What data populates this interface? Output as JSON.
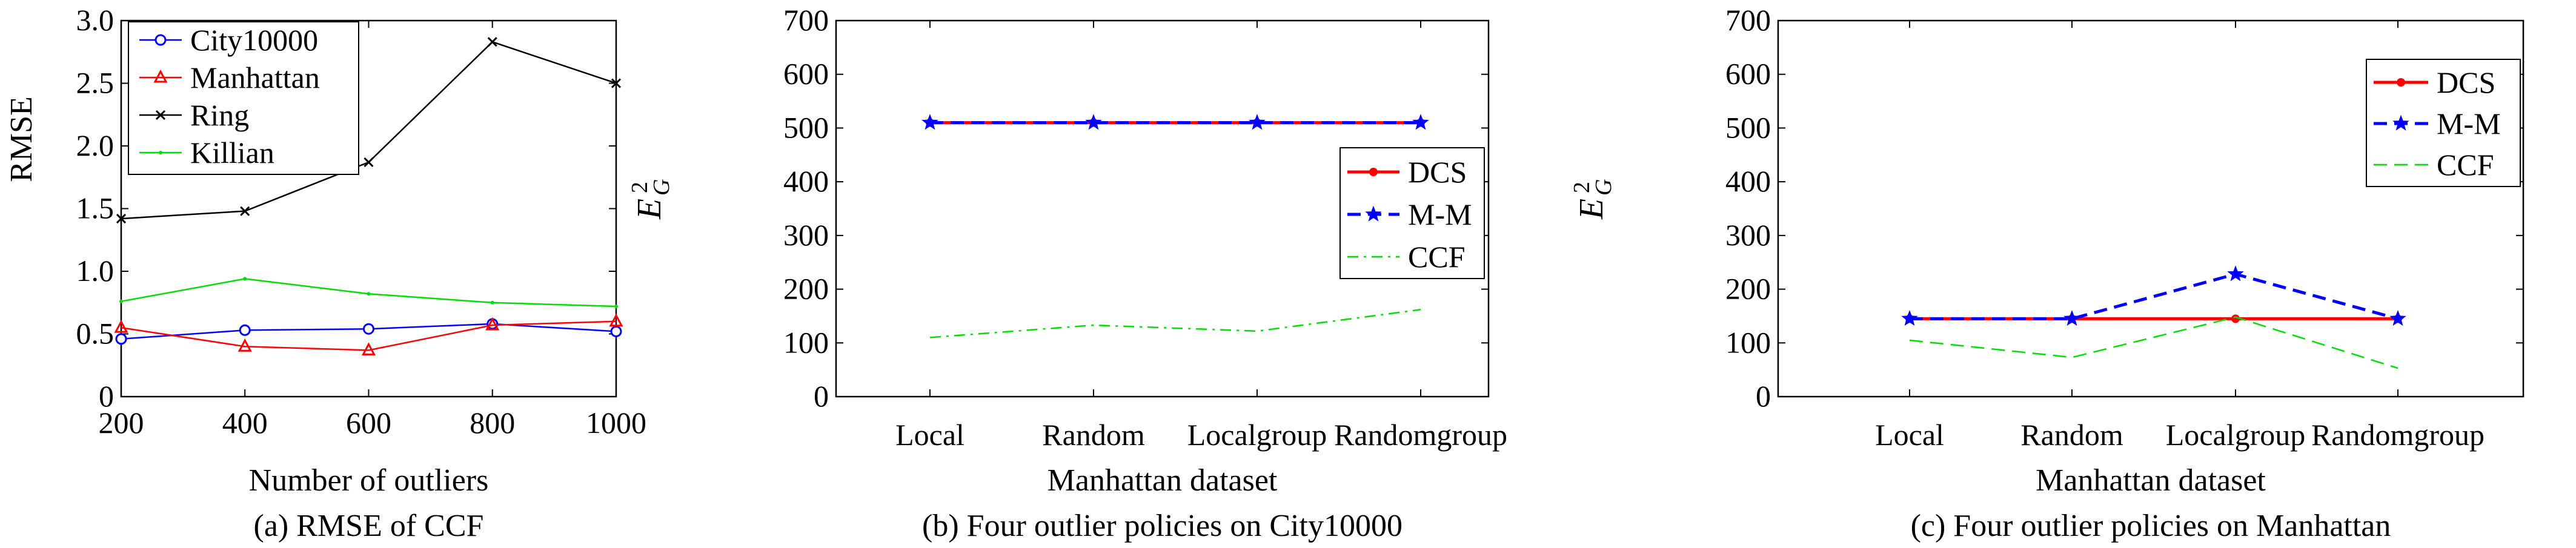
{
  "chart_data": [
    {
      "type": "line",
      "caption": "(a) RMSE of CCF",
      "xlabel": "Number of outliers",
      "ylabel": "RMSE",
      "x": [
        200,
        400,
        600,
        800,
        1000
      ],
      "xlim": [
        200,
        1000
      ],
      "ylim": [
        0,
        3.0
      ],
      "xticks": [
        200,
        400,
        600,
        800,
        1000
      ],
      "yticks": [
        "0",
        "0.5",
        "1.0",
        "1.5",
        "2.0",
        "2.5",
        "3.0"
      ],
      "grid": false,
      "legend_position": "top-left",
      "series": [
        {
          "name": "City10000",
          "color": "#0000ff",
          "marker": "circle",
          "dash": "solid",
          "values": [
            0.46,
            0.53,
            0.54,
            0.58,
            0.52
          ]
        },
        {
          "name": "Manhattan",
          "color": "#ff0000",
          "marker": "triangle",
          "dash": "solid",
          "values": [
            0.55,
            0.4,
            0.37,
            0.57,
            0.6
          ]
        },
        {
          "name": "Ring",
          "color": "#000000",
          "marker": "x",
          "dash": "solid",
          "values": [
            1.42,
            1.48,
            1.87,
            2.83,
            2.5
          ]
        },
        {
          "name": "Killian",
          "color": "#00dd00",
          "marker": "point",
          "dash": "solid",
          "values": [
            0.76,
            0.94,
            0.82,
            0.75,
            0.72
          ]
        }
      ]
    },
    {
      "type": "line",
      "caption": "(b) Four outlier policies on City10000",
      "xlabel": "Manhattan dataset",
      "ylabel_main": "E",
      "ylabel_sup": "2",
      "ylabel_sub": "G",
      "categories": [
        "Local",
        "Random",
        "Localgroup",
        "Randomgroup"
      ],
      "ylim": [
        0,
        700
      ],
      "yticks": [
        "0",
        "100",
        "200",
        "300",
        "400",
        "500",
        "600",
        "700"
      ],
      "grid": false,
      "legend_position": "center-right",
      "series": [
        {
          "name": "DCS",
          "color": "#ff0000",
          "marker": "dot",
          "dash": "solid",
          "values": [
            510,
            510,
            510,
            510
          ]
        },
        {
          "name": "M-M",
          "color": "#0000ff",
          "marker": "star",
          "dash": "dashed",
          "values": [
            510,
            510,
            510,
            510
          ]
        },
        {
          "name": "CCF",
          "color": "#00dd00",
          "marker": "none",
          "dash": "dashdot",
          "values": [
            110,
            133,
            122,
            162
          ]
        }
      ]
    },
    {
      "type": "line",
      "caption": "(c) Four outlier policies on Manhattan",
      "xlabel": "Manhattan dataset",
      "ylabel_main": "E",
      "ylabel_sup": "2",
      "ylabel_sub": "G",
      "categories": [
        "Local",
        "Random",
        "Localgroup",
        "Randomgroup"
      ],
      "ylim": [
        0,
        700
      ],
      "yticks": [
        "0",
        "100",
        "200",
        "300",
        "400",
        "500",
        "600",
        "700"
      ],
      "grid": false,
      "legend_position": "top-right",
      "series": [
        {
          "name": "DCS",
          "color": "#ff0000",
          "marker": "dot",
          "dash": "solid",
          "values": [
            145,
            145,
            145,
            145
          ]
        },
        {
          "name": "M-M",
          "color": "#0000ff",
          "marker": "star",
          "dash": "dashed",
          "values": [
            145,
            145,
            228,
            145
          ]
        },
        {
          "name": "CCF",
          "color": "#00dd00",
          "marker": "none",
          "dash": "dashed",
          "values": [
            105,
            73,
            148,
            53
          ]
        }
      ]
    }
  ]
}
